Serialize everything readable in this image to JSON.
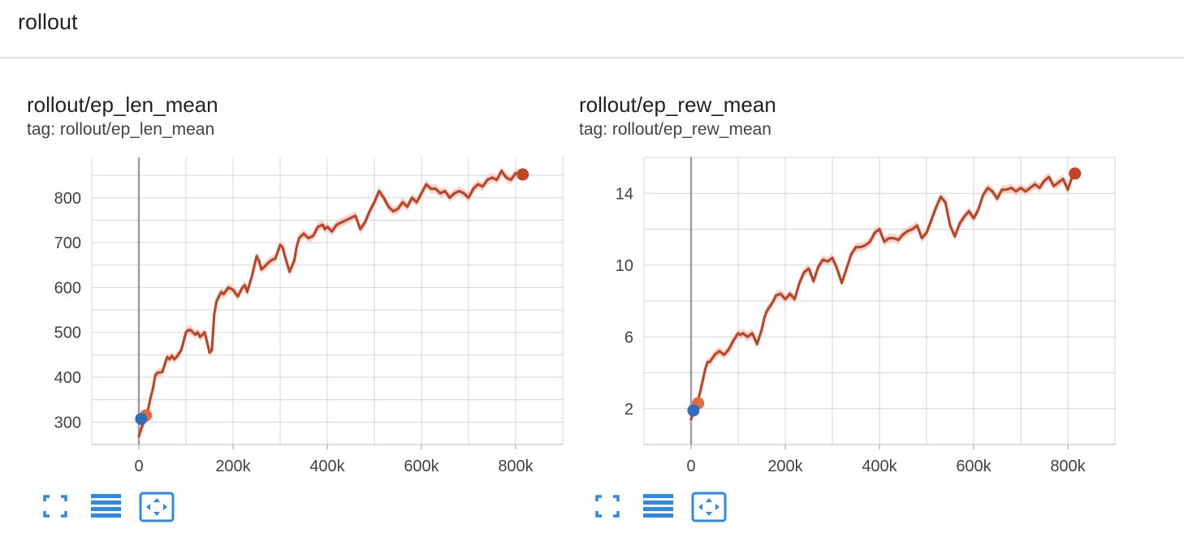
{
  "section": {
    "title": "rollout"
  },
  "toolbar": {
    "icons": [
      "fullscreen-icon",
      "data-list-icon",
      "fit-domain-icon"
    ]
  },
  "colors": {
    "run_primary": "#bf4527",
    "run_band": "#f2cbc4",
    "run_secondary_marker": "#e8673c",
    "run_start_marker": "#2f6ebf"
  },
  "cards": [
    {
      "title": "rollout/ep_len_mean",
      "tag": "tag: rollout/ep_len_mean"
    },
    {
      "title": "rollout/ep_rew_mean",
      "tag": "tag: rollout/ep_rew_mean"
    }
  ],
  "chart_data": [
    {
      "type": "line",
      "title": "rollout/ep_len_mean",
      "xlabel": "",
      "ylabel": "",
      "xlim": [
        -100000,
        900000
      ],
      "ylim": [
        250,
        890
      ],
      "x_ticks": [
        0,
        200000,
        400000,
        600000,
        800000
      ],
      "x_tick_labels": [
        "0",
        "200k",
        "400k",
        "600k",
        "800k"
      ],
      "y_ticks": [
        300,
        400,
        500,
        600,
        700,
        800
      ],
      "y_tick_labels": [
        "300",
        "400",
        "500",
        "600",
        "700",
        "800"
      ],
      "grid": true,
      "series": [
        {
          "x": [
            0,
            5000,
            10000,
            15000,
            20000,
            25000,
            30000,
            35000,
            40000,
            50000,
            60000,
            65000,
            70000,
            75000,
            80000,
            90000,
            100000,
            105000,
            110000,
            120000,
            125000,
            130000,
            140000,
            150000,
            155000,
            160000,
            165000,
            170000,
            175000,
            180000,
            190000,
            200000,
            210000,
            220000,
            225000,
            230000,
            240000,
            250000,
            255000,
            260000,
            270000,
            280000,
            290000,
            300000,
            305000,
            310000,
            320000,
            330000,
            335000,
            340000,
            350000,
            360000,
            370000,
            380000,
            390000,
            395000,
            400000,
            410000,
            420000,
            430000,
            440000,
            450000,
            460000,
            470000,
            480000,
            490000,
            500000,
            510000,
            520000,
            530000,
            540000,
            550000,
            560000,
            570000,
            580000,
            590000,
            600000,
            610000,
            620000,
            630000,
            640000,
            650000,
            660000,
            670000,
            680000,
            690000,
            700000,
            710000,
            720000,
            730000,
            740000,
            750000,
            760000,
            770000,
            780000,
            790000,
            800000,
            810000,
            815000
          ],
          "values": [
            268,
            285,
            300,
            310,
            330,
            355,
            375,
            405,
            410,
            412,
            445,
            440,
            448,
            440,
            445,
            460,
            500,
            505,
            505,
            495,
            500,
            490,
            500,
            455,
            460,
            540,
            570,
            580,
            590,
            585,
            600,
            595,
            580,
            600,
            605,
            590,
            625,
            670,
            660,
            640,
            650,
            660,
            665,
            695,
            690,
            670,
            635,
            660,
            690,
            710,
            720,
            710,
            715,
            735,
            740,
            730,
            735,
            725,
            740,
            745,
            750,
            755,
            760,
            730,
            745,
            770,
            790,
            815,
            800,
            780,
            770,
            775,
            790,
            780,
            800,
            790,
            810,
            830,
            820,
            820,
            810,
            815,
            800,
            810,
            815,
            810,
            800,
            820,
            830,
            825,
            840,
            845,
            840,
            860,
            845,
            840,
            855,
            850,
            852
          ],
          "band_width": 10
        }
      ],
      "markers": [
        {
          "x": 15000,
          "y": 315,
          "color": "#e8673c"
        },
        {
          "x": 5000,
          "y": 307,
          "color": "#2f6ebf"
        },
        {
          "x": 815000,
          "y": 852,
          "color": "#bf4527"
        }
      ]
    },
    {
      "type": "line",
      "title": "rollout/ep_rew_mean",
      "xlabel": "",
      "ylabel": "",
      "xlim": [
        -100000,
        900000
      ],
      "ylim": [
        0,
        16
      ],
      "x_ticks": [
        0,
        200000,
        400000,
        600000,
        800000
      ],
      "x_tick_labels": [
        "0",
        "200k",
        "400k",
        "600k",
        "800k"
      ],
      "y_ticks": [
        2,
        6,
        10,
        14
      ],
      "y_tick_labels": [
        "2",
        "6",
        "10",
        "14"
      ],
      "grid": true,
      "series": [
        {
          "x": [
            0,
            5000,
            10000,
            15000,
            20000,
            25000,
            30000,
            35000,
            40000,
            50000,
            60000,
            70000,
            80000,
            90000,
            100000,
            105000,
            110000,
            120000,
            130000,
            140000,
            150000,
            155000,
            160000,
            170000,
            175000,
            180000,
            190000,
            200000,
            210000,
            220000,
            230000,
            240000,
            250000,
            260000,
            270000,
            280000,
            290000,
            300000,
            310000,
            320000,
            330000,
            340000,
            350000,
            360000,
            370000,
            380000,
            390000,
            400000,
            410000,
            420000,
            430000,
            440000,
            450000,
            460000,
            470000,
            480000,
            490000,
            500000,
            510000,
            520000,
            530000,
            540000,
            550000,
            560000,
            570000,
            580000,
            590000,
            600000,
            610000,
            620000,
            630000,
            640000,
            650000,
            660000,
            670000,
            680000,
            690000,
            700000,
            710000,
            720000,
            730000,
            740000,
            750000,
            760000,
            770000,
            780000,
            790000,
            800000,
            810000,
            815000
          ],
          "values": [
            1.4,
            1.8,
            2.0,
            2.5,
            3.0,
            3.6,
            4.2,
            4.6,
            4.6,
            5.0,
            5.2,
            5.0,
            5.3,
            5.8,
            6.2,
            6.1,
            6.2,
            6.0,
            6.2,
            5.6,
            6.4,
            7.0,
            7.4,
            7.8,
            8.0,
            8.3,
            8.4,
            8.1,
            8.4,
            8.1,
            9.0,
            9.6,
            9.8,
            9.1,
            9.9,
            10.3,
            10.2,
            10.4,
            9.8,
            9.0,
            9.8,
            10.6,
            11.0,
            11.0,
            11.1,
            11.3,
            11.8,
            12.0,
            11.3,
            11.5,
            11.5,
            11.4,
            11.7,
            11.9,
            12.0,
            12.2,
            11.5,
            11.8,
            12.5,
            13.2,
            13.8,
            13.5,
            12.2,
            11.6,
            12.3,
            12.7,
            13.0,
            12.6,
            13.1,
            13.9,
            14.3,
            14.1,
            13.7,
            14.2,
            14.2,
            14.3,
            14.1,
            14.3,
            14.1,
            14.3,
            14.5,
            14.3,
            14.7,
            14.9,
            14.4,
            14.6,
            14.8,
            14.2,
            15.0,
            15.1
          ],
          "band_width": 0.25
        }
      ],
      "markers": [
        {
          "x": 15000,
          "y": 2.3,
          "color": "#e8673c"
        },
        {
          "x": 5000,
          "y": 1.9,
          "color": "#2f6ebf"
        },
        {
          "x": 815000,
          "y": 15.1,
          "color": "#bf4527"
        }
      ]
    }
  ]
}
